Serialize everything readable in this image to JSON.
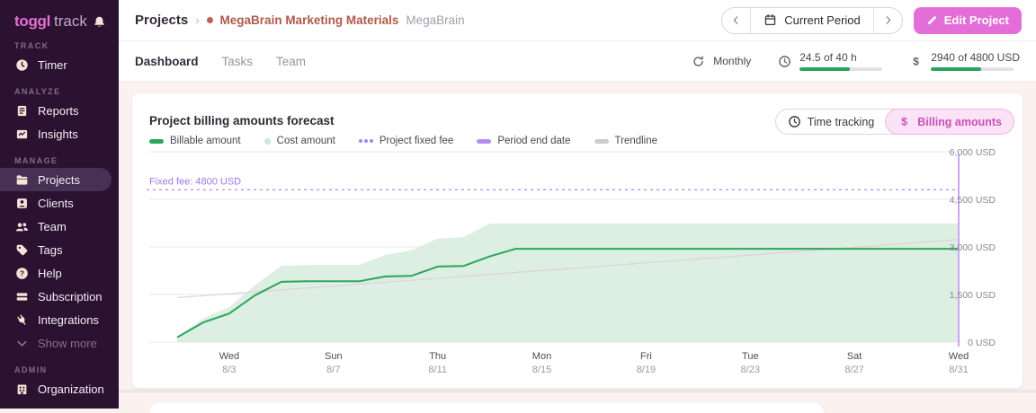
{
  "app": {
    "logo_bold": "toggl",
    "logo_light": "track",
    "bell_icon": "bell"
  },
  "sidebar": {
    "sections": [
      {
        "label": "TRACK",
        "items": [
          {
            "label": "Timer",
            "icon": "clock"
          }
        ]
      },
      {
        "label": "ANALYZE",
        "items": [
          {
            "label": "Reports",
            "icon": "report"
          },
          {
            "label": "Insights",
            "icon": "insights"
          }
        ]
      },
      {
        "label": "MANAGE",
        "items": [
          {
            "label": "Projects",
            "icon": "folder",
            "active": true
          },
          {
            "label": "Clients",
            "icon": "person"
          },
          {
            "label": "Team",
            "icon": "people"
          },
          {
            "label": "Tags",
            "icon": "tag"
          },
          {
            "label": "Help",
            "icon": "help"
          },
          {
            "label": "Subscription",
            "icon": "card"
          },
          {
            "label": "Integrations",
            "icon": "plug"
          },
          {
            "label": "Show more",
            "icon": "chevron-down",
            "muted": true
          }
        ]
      },
      {
        "label": "ADMIN",
        "items": [
          {
            "label": "Organization",
            "icon": "building"
          }
        ]
      }
    ]
  },
  "breadcrumb": {
    "root": "Projects",
    "separator": "›",
    "project": "MegaBrain Marketing Materials",
    "client": "MegaBrain",
    "project_color": "#c0614d"
  },
  "header": {
    "period_nav": {
      "label": "Current Period",
      "icon": "calendar",
      "prev_icon": "chevron-left",
      "next_icon": "chevron-right"
    },
    "edit_button": {
      "label": "Edit Project",
      "icon": "pencil"
    }
  },
  "tabs": [
    {
      "label": "Dashboard",
      "active": true
    },
    {
      "label": "Tasks",
      "active": false
    },
    {
      "label": "Team",
      "active": false
    }
  ],
  "metrics": {
    "recurrence": {
      "label": "Monthly",
      "icon": "cycle"
    },
    "hours": {
      "text": "24.5 of 40 h",
      "percent": 61,
      "icon": "clock-o"
    },
    "amount": {
      "text": "2940 of 4800 USD",
      "percent": 61,
      "icon": "dollar"
    }
  },
  "chart_card": {
    "title": "Project billing amounts forecast",
    "legend": [
      {
        "label": "Billable amount",
        "marker": "pill",
        "color": "#2aa65c"
      },
      {
        "label": "Cost amount",
        "marker": "dot",
        "color": "#cde8d4"
      },
      {
        "label": "Project fixed fee",
        "marker": "dots3",
        "color": "#9d86f0"
      },
      {
        "label": "Period end date",
        "marker": "pill",
        "color": "#b48cf2"
      },
      {
        "label": "Trendline",
        "marker": "pill",
        "color": "#cfcacf"
      }
    ],
    "toggle": [
      {
        "label": "Time tracking",
        "icon": "clock-o",
        "active": false
      },
      {
        "label": "Billing amounts",
        "icon": "dollar",
        "active": true
      }
    ]
  },
  "chart_data": {
    "type": "area",
    "title": "Project billing amounts forecast",
    "x": [
      "8/1",
      "8/2",
      "8/3",
      "8/4",
      "8/5",
      "8/6",
      "8/7",
      "8/8",
      "8/9",
      "8/10",
      "8/11",
      "8/12",
      "8/13",
      "8/14",
      "8/15",
      "8/16",
      "8/17",
      "8/18",
      "8/19",
      "8/20",
      "8/21",
      "8/22",
      "8/23",
      "8/24",
      "8/25",
      "8/26",
      "8/27",
      "8/28",
      "8/29",
      "8/30",
      "8/31"
    ],
    "series": [
      {
        "name": "Billable amount",
        "color": "#2aa65c",
        "values": [
          150,
          620,
          900,
          1480,
          1900,
          1920,
          1920,
          1920,
          2070,
          2090,
          2380,
          2400,
          2700,
          2940,
          2940,
          2940,
          2940,
          2940,
          2940,
          2940,
          2940,
          2940,
          2940,
          2940,
          2940,
          2940,
          2940,
          2940,
          2940,
          2940,
          2940
        ]
      },
      {
        "name": "Cost amount",
        "color": "#d9ecdf",
        "values": [
          150,
          750,
          1100,
          1800,
          2400,
          2430,
          2430,
          2430,
          2750,
          2890,
          3260,
          3310,
          3740,
          3740,
          3740,
          3740,
          3740,
          3740,
          3740,
          3740,
          3740,
          3740,
          3740,
          3740,
          3740,
          3740,
          3740,
          3740,
          3740,
          3740,
          3740
        ]
      }
    ],
    "trendline": {
      "name": "Trendline",
      "color": "#dcd4d9",
      "start": 1400,
      "end": 3230
    },
    "fixed_fee": {
      "label": "Fixed fee: 4800 USD",
      "value": 4800,
      "color": "#ab8cf2",
      "label_color": "#9a79ea"
    },
    "period_end": {
      "x": "8/31",
      "color": "#c9a8f0"
    },
    "ylim": [
      0,
      6000
    ],
    "y_ticks": [
      {
        "value": 0,
        "label": "0 USD"
      },
      {
        "value": 1500,
        "label": "1,500 USD"
      },
      {
        "value": 3000,
        "label": "3,000 USD"
      },
      {
        "value": 4500,
        "label": "4,500 USD"
      },
      {
        "value": 6000,
        "label": "6,000 USD"
      }
    ],
    "x_ticks": [
      {
        "index": 2,
        "day": "Wed",
        "date": "8/3"
      },
      {
        "index": 6,
        "day": "Sun",
        "date": "8/7"
      },
      {
        "index": 10,
        "day": "Thu",
        "date": "8/11"
      },
      {
        "index": 14,
        "day": "Mon",
        "date": "8/15"
      },
      {
        "index": 18,
        "day": "Fri",
        "date": "8/19"
      },
      {
        "index": 22,
        "day": "Tue",
        "date": "8/23"
      },
      {
        "index": 26,
        "day": "Sat",
        "date": "8/27"
      },
      {
        "index": 30,
        "day": "Wed",
        "date": "8/31"
      }
    ],
    "grid": true,
    "legend_position": "top-left"
  },
  "colors": {
    "sidebar_bg": "#2b1230",
    "sidebar_active": "#463053",
    "brand_pink": "#e36ed7",
    "green": "#2ba35c",
    "light_green_fill": "#d9ecdf",
    "purple_dashed": "#ab8cf2",
    "purple_period_line": "#c9a8f0",
    "terracotta": "#af5a48",
    "page_bg": "#fbf2ef"
  }
}
